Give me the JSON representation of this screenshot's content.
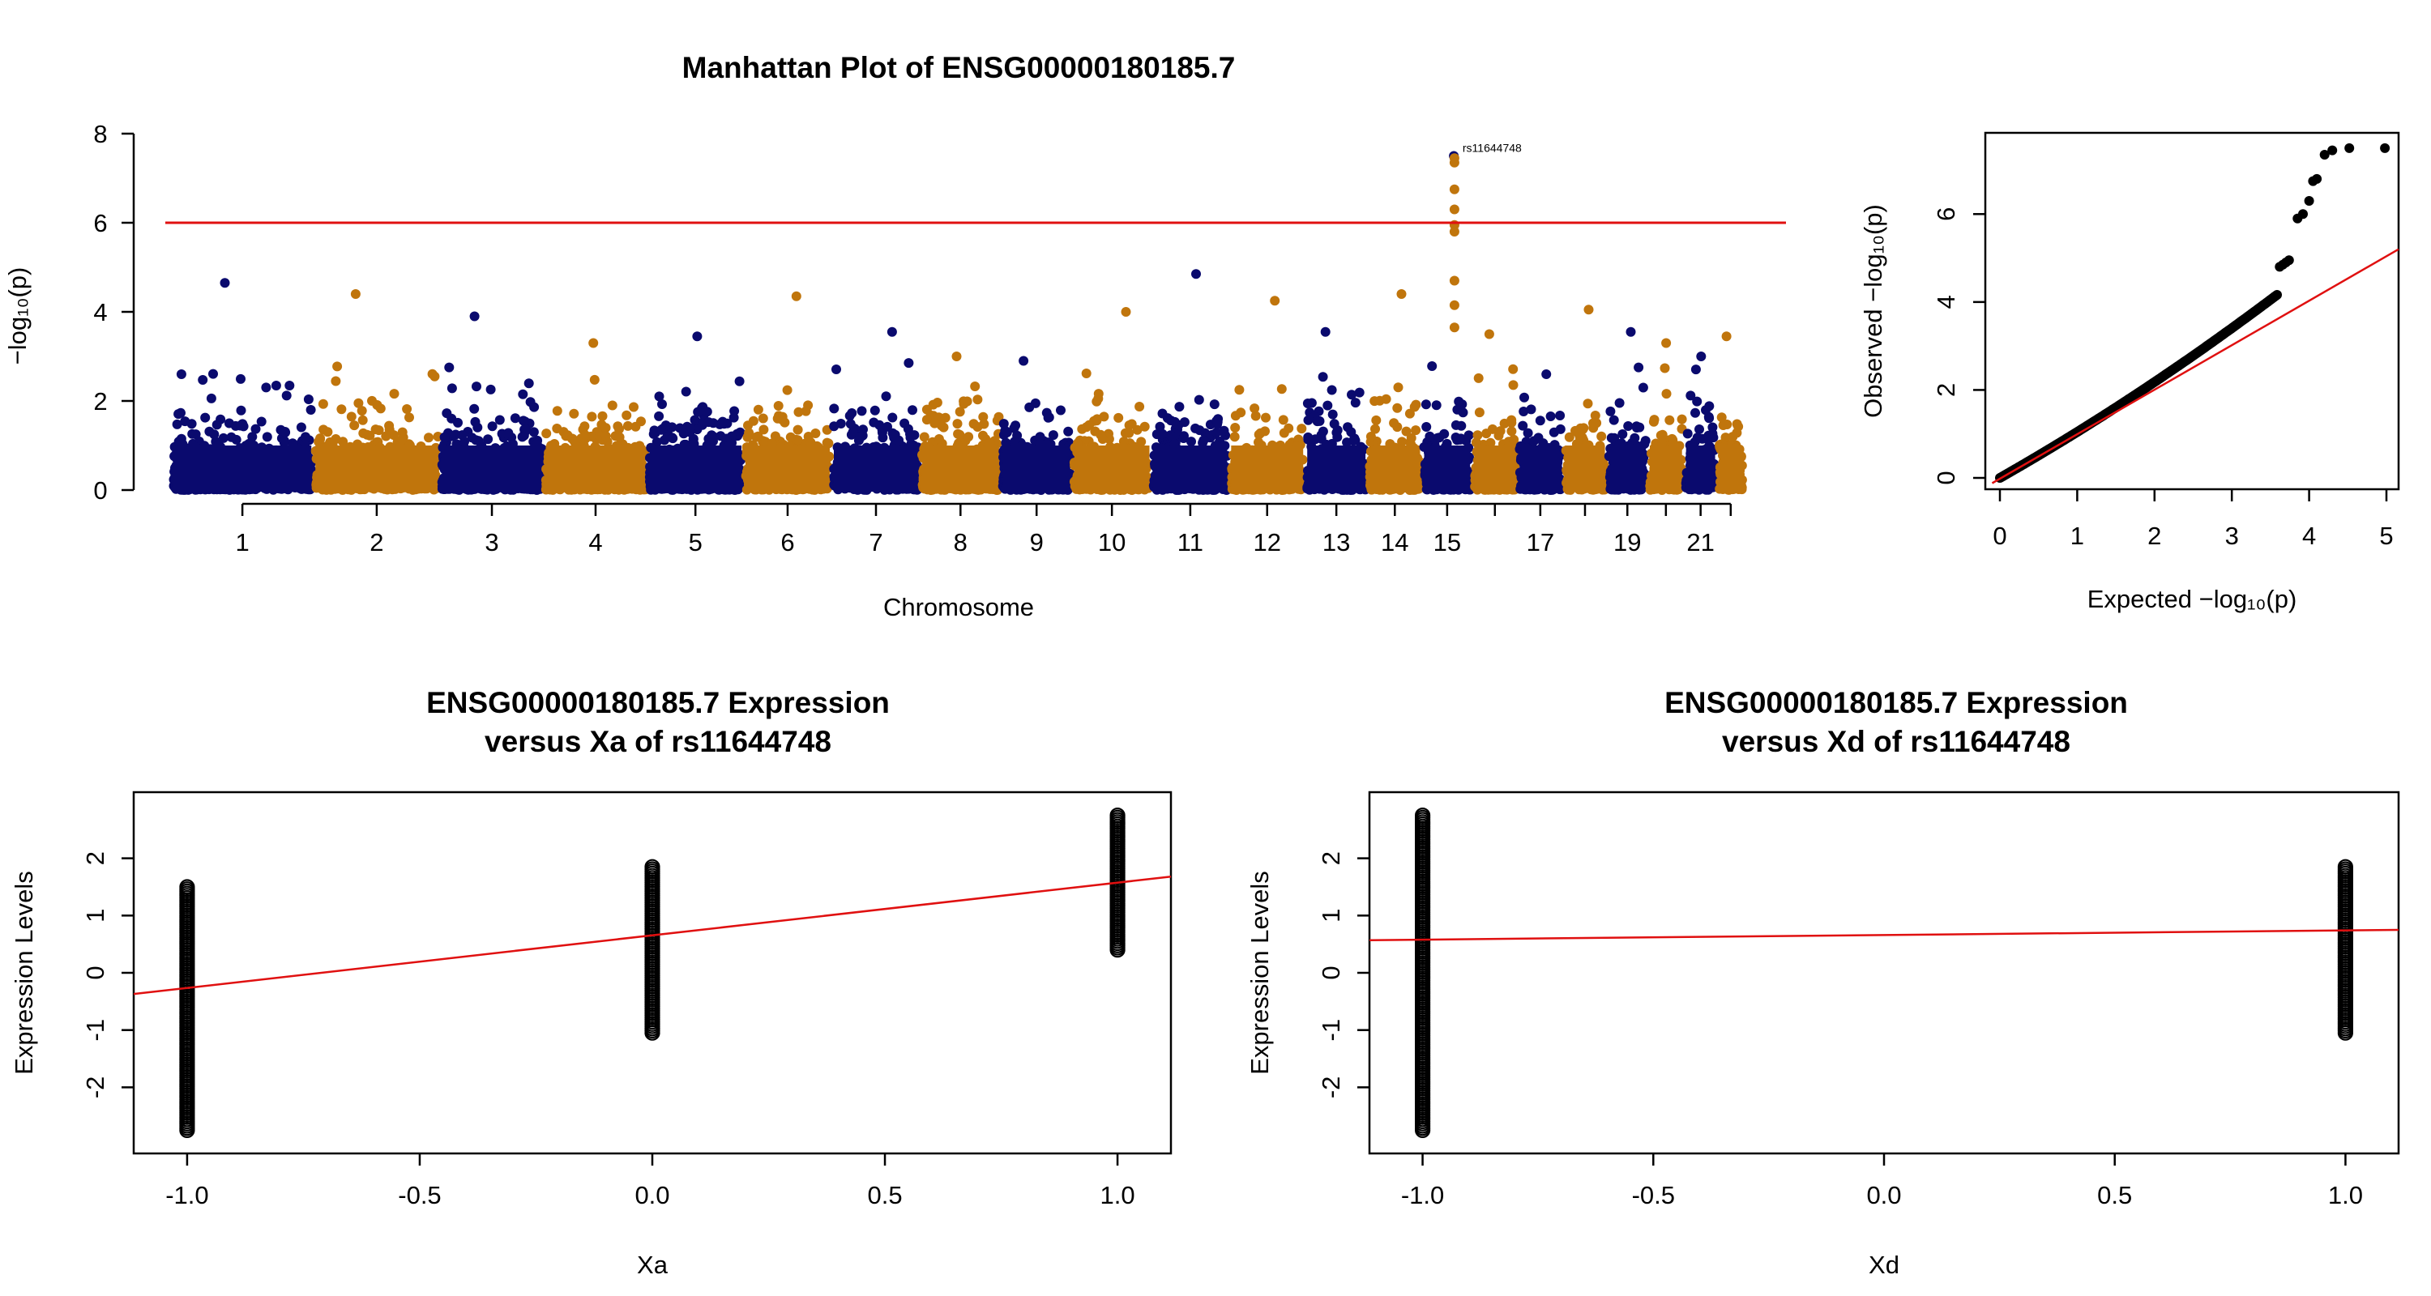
{
  "colors": {
    "chrom_odd": "#0a0a6e",
    "chrom_even": "#c0750c",
    "reference_line": "#e01010",
    "points": "#000000"
  },
  "chart_data": [
    {
      "type": "scatter",
      "kind": "manhattan",
      "title": "Manhattan Plot of ENSG00000180185.7",
      "xlabel": "Chromosome",
      "ylabel": "−log₁₀(p)",
      "ylim": [
        0,
        8
      ],
      "yticks": [
        0,
        2,
        4,
        6,
        8
      ],
      "xtick_labels": [
        "1",
        "2",
        "3",
        "4",
        "5",
        "6",
        "7",
        "8",
        "9",
        "10",
        "11",
        "12",
        "13",
        "14",
        "15",
        "17",
        "19",
        "21"
      ],
      "chromosomes": [
        {
          "chr": "1",
          "peak": 4.65
        },
        {
          "chr": "2",
          "peak": 4.4
        },
        {
          "chr": "3",
          "peak": 3.9
        },
        {
          "chr": "4",
          "peak": 3.3
        },
        {
          "chr": "5",
          "peak": 3.45
        },
        {
          "chr": "6",
          "peak": 4.35
        },
        {
          "chr": "7",
          "peak": 3.55
        },
        {
          "chr": "8",
          "peak": 3.0
        },
        {
          "chr": "9",
          "peak": 2.9
        },
        {
          "chr": "10",
          "peak": 4.0
        },
        {
          "chr": "11",
          "peak": 4.85
        },
        {
          "chr": "12",
          "peak": 4.25
        },
        {
          "chr": "13",
          "peak": 3.55
        },
        {
          "chr": "14",
          "peak": 4.4
        },
        {
          "chr": "15",
          "peak": 7.5
        },
        {
          "chr": "16",
          "peak": 3.5
        },
        {
          "chr": "17",
          "peak": 2.6
        },
        {
          "chr": "18",
          "peak": 4.05
        },
        {
          "chr": "19",
          "peak": 3.55
        },
        {
          "chr": "20",
          "peak": 3.3
        },
        {
          "chr": "21",
          "peak": 3.0
        },
        {
          "chr": "22",
          "peak": 3.45
        }
      ],
      "threshold": 6,
      "top_hit": {
        "label": "rs11644748",
        "chr": "15",
        "y": 7.45
      },
      "hit_column_values": [
        7.45,
        7.35,
        6.75,
        6.3,
        5.95,
        5.8,
        4.7,
        4.15,
        3.65
      ]
    },
    {
      "type": "scatter",
      "kind": "qq",
      "xlabel": "Expected −log₁₀(p)",
      "ylabel": "Observed −log₁₀(p)",
      "xlim": [
        0,
        5
      ],
      "ylim": [
        0,
        7.7
      ],
      "xticks": [
        0,
        1,
        2,
        3,
        4,
        5
      ],
      "yticks": [
        0,
        2,
        4,
        6
      ],
      "reference_line": {
        "x1": -0.1,
        "y1": -0.12,
        "x2": 5.2,
        "y2": 5.2
      },
      "tail_points": [
        [
          3.62,
          4.8
        ],
        [
          3.66,
          4.85
        ],
        [
          3.7,
          4.9
        ],
        [
          3.74,
          4.95
        ],
        [
          3.85,
          5.9
        ],
        [
          3.92,
          6.0
        ],
        [
          4.0,
          6.3
        ],
        [
          4.05,
          6.75
        ],
        [
          4.1,
          6.8
        ],
        [
          4.2,
          7.35
        ],
        [
          4.3,
          7.45
        ],
        [
          4.52,
          7.5
        ],
        [
          4.98,
          7.5
        ]
      ]
    },
    {
      "type": "scatter",
      "title": "ENSG00000180185.7 Expression",
      "subtitle": "versus Xa of rs11644748",
      "xlabel": "Xa",
      "ylabel": "Expression Levels",
      "xlim": [
        -1.08,
        1.08
      ],
      "ylim": [
        -2.9,
        2.9
      ],
      "xticks": [
        "-1.0",
        "-0.5",
        "0.0",
        "0.5",
        "1.0"
      ],
      "yticks": [
        "-2",
        "-1",
        "0",
        "1",
        "2"
      ],
      "groups": [
        {
          "x": -1,
          "range": [
            -2.75,
            1.5
          ]
        },
        {
          "x": 0,
          "range": [
            -1.05,
            1.85
          ]
        },
        {
          "x": 1,
          "range": [
            0.4,
            2.75
          ]
        }
      ],
      "fit_line": {
        "x1": -1.08,
        "y1": -0.37,
        "x2": 1.08,
        "y2": 1.68
      }
    },
    {
      "type": "scatter",
      "title": "ENSG00000180185.7 Expression",
      "subtitle": "versus Xd of rs11644748",
      "xlabel": "Xd",
      "ylabel": "Expression Levels",
      "xlim": [
        -1.08,
        1.08
      ],
      "ylim": [
        -2.9,
        2.9
      ],
      "xticks": [
        "-1.0",
        "-0.5",
        "0.0",
        "0.5",
        "1.0"
      ],
      "yticks": [
        "-2",
        "-1",
        "0",
        "1",
        "2"
      ],
      "groups": [
        {
          "x": -1,
          "range": [
            -2.75,
            2.75
          ]
        },
        {
          "x": 1,
          "range": [
            -1.05,
            1.85
          ]
        }
      ],
      "fit_line": {
        "x1": -1.08,
        "y1": 0.57,
        "x2": 1.08,
        "y2": 0.75
      }
    }
  ]
}
